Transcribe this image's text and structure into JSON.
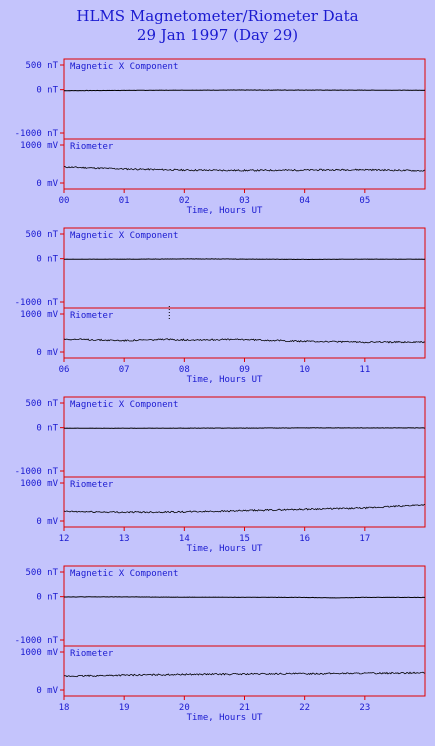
{
  "title": "HLMS Magnetometer/Riometer Data",
  "subtitle": "29 Jan 1997 (Day 29)",
  "colors": {
    "background": "#c4c4fc",
    "frame": "#e00000",
    "text": "#1a1ad0",
    "trace": "#000000"
  },
  "chart_data": {
    "type": "line",
    "xlabel": "Time, Hours UT",
    "panels": [
      {
        "hours": [
          "00",
          "01",
          "02",
          "03",
          "04",
          "05"
        ],
        "xlim": [
          0,
          6
        ],
        "magnetic": {
          "name": "Magnetic X Component",
          "ylim": [
            -1000,
            500
          ],
          "yticks": [
            "500 nT",
            "0 nT",
            "-1000 nT"
          ],
          "x": [
            0,
            1,
            2,
            3,
            4,
            5,
            6
          ],
          "y": [
            -20,
            -15,
            -10,
            -8,
            -8,
            -10,
            -12
          ]
        },
        "riometer": {
          "name": "Riometer",
          "ylim": [
            0,
            1000
          ],
          "yticks": [
            "1000 mV",
            "0 mV"
          ],
          "x": [
            0,
            1,
            2,
            3,
            4,
            5,
            6
          ],
          "y": [
            420,
            370,
            340,
            330,
            340,
            350,
            320
          ]
        }
      },
      {
        "hours": [
          "06",
          "07",
          "08",
          "09",
          "10",
          "11"
        ],
        "xlim": [
          6,
          12
        ],
        "magnetic": {
          "name": "Magnetic X Component",
          "ylim": [
            -1000,
            500
          ],
          "yticks": [
            "500 nT",
            "0 nT",
            "-1000 nT"
          ],
          "x": [
            6,
            7,
            8,
            9,
            10,
            11,
            12
          ],
          "y": [
            -12,
            -10,
            -5,
            -8,
            -15,
            -10,
            -12
          ]
        },
        "riometer": {
          "name": "Riometer",
          "ylim": [
            0,
            1000
          ],
          "yticks": [
            "1000 mV",
            "0 mV"
          ],
          "x": [
            6,
            7,
            7.7,
            8,
            9,
            10,
            11,
            12
          ],
          "y": [
            340,
            300,
            330,
            320,
            330,
            280,
            260,
            260
          ]
        }
      },
      {
        "hours": [
          "12",
          "13",
          "14",
          "15",
          "16",
          "17"
        ],
        "xlim": [
          12,
          18
        ],
        "magnetic": {
          "name": "Magnetic X Component",
          "ylim": [
            -1000,
            500
          ],
          "yticks": [
            "500 nT",
            "0 nT",
            "-1000 nT"
          ],
          "x": [
            12,
            13,
            14,
            15,
            16,
            17,
            18
          ],
          "y": [
            -10,
            -12,
            -10,
            -8,
            -5,
            -5,
            -5
          ]
        },
        "riometer": {
          "name": "Riometer",
          "ylim": [
            0,
            1000
          ],
          "yticks": [
            "1000 mV",
            "0 mV"
          ],
          "x": [
            12,
            13,
            14,
            15,
            16,
            17,
            18
          ],
          "y": [
            250,
            230,
            240,
            270,
            310,
            340,
            430
          ]
        }
      },
      {
        "hours": [
          "18",
          "19",
          "20",
          "21",
          "22",
          "23"
        ],
        "xlim": [
          18,
          24
        ],
        "magnetic": {
          "name": "Magnetic X Component",
          "ylim": [
            -1000,
            500
          ],
          "yticks": [
            "500 nT",
            "0 nT",
            "-1000 nT"
          ],
          "x": [
            18,
            19,
            20,
            21,
            22,
            22.5,
            23,
            24
          ],
          "y": [
            -5,
            -5,
            -10,
            -12,
            -15,
            -25,
            -15,
            -15
          ]
        },
        "riometer": {
          "name": "Riometer",
          "ylim": [
            0,
            1000
          ],
          "yticks": [
            "1000 mV",
            "0 mV"
          ],
          "x": [
            18,
            19,
            20,
            21,
            22,
            23,
            24
          ],
          "y": [
            360,
            390,
            410,
            420,
            430,
            440,
            450
          ]
        }
      }
    ]
  }
}
